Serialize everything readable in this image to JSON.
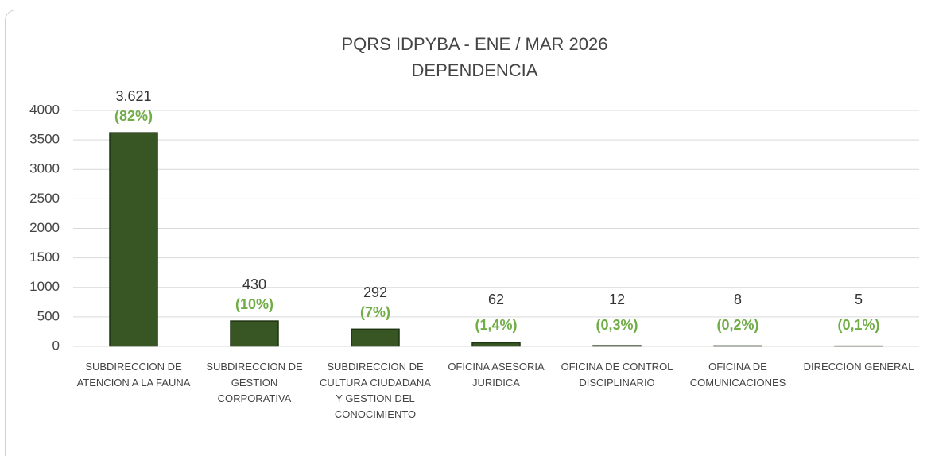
{
  "chart_data": {
    "type": "bar",
    "title": "PQRS IDPYBA - ENE / MAR 2026",
    "subtitle": "DEPENDENCIA",
    "categories": [
      "SUBDIRECCION DE ATENCION A LA FAUNA",
      "SUBDIRECCION DE GESTION CORPORATIVA",
      "SUBDIRECCION DE CULTURA CIUDADANA Y GESTION DEL CONOCIMIENTO",
      "OFICINA ASESORIA JURIDICA",
      "OFICINA DE CONTROL DISCIPLINARIO",
      "OFICINA DE COMUNICACIONES",
      "DIRECCION GENERAL"
    ],
    "values": [
      3621,
      430,
      292,
      62,
      12,
      8,
      5
    ],
    "value_labels": [
      "3.621",
      "430",
      "292",
      "62",
      "12",
      "8",
      "5"
    ],
    "percent_labels": [
      "(82%)",
      "(10%)",
      "(7%)",
      "(1,4%)",
      "(0,3%)",
      "(0,2%)",
      "(0,1%)"
    ],
    "color": "#375623",
    "ylim": [
      0,
      4000
    ],
    "yticks": [
      0,
      500,
      1000,
      1500,
      2000,
      2500,
      3000,
      3500,
      4000
    ],
    "grid": true
  }
}
